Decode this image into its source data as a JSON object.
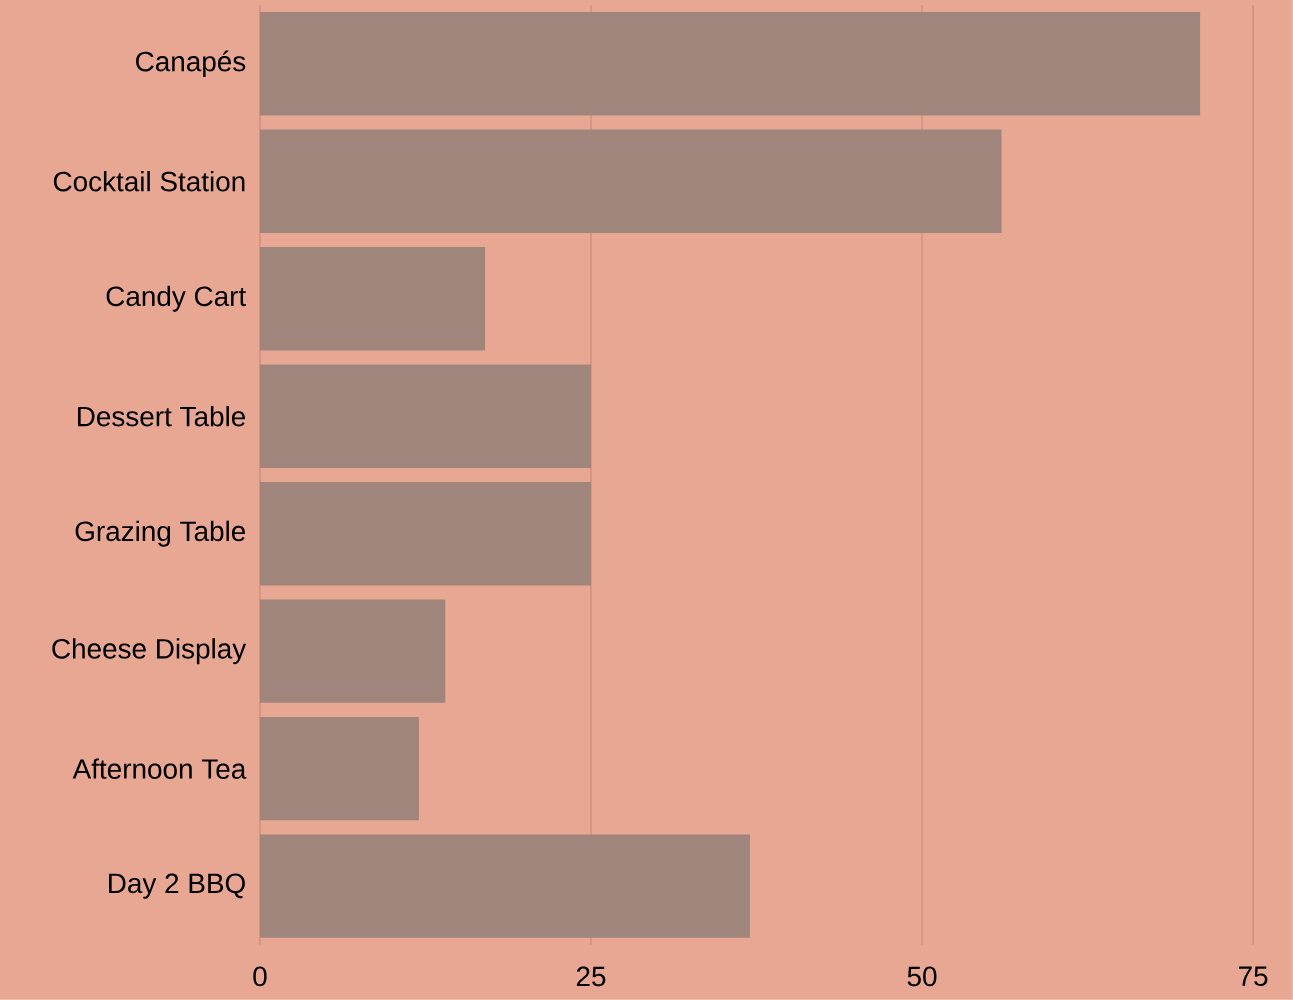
{
  "chart_data": {
    "type": "bar",
    "orientation": "horizontal",
    "categories": [
      "Canapés",
      "Cocktail Station",
      "Candy Cart",
      "Dessert Table",
      "Grazing Table",
      "Cheese Display",
      "Afternoon Tea",
      "Day 2 BBQ"
    ],
    "values": [
      71,
      56,
      17,
      25,
      25,
      14,
      12,
      37
    ],
    "color": "#a0857c",
    "xlim": [
      0,
      78
    ],
    "xticks": [
      0,
      25,
      50,
      75
    ],
    "grid": "x"
  }
}
